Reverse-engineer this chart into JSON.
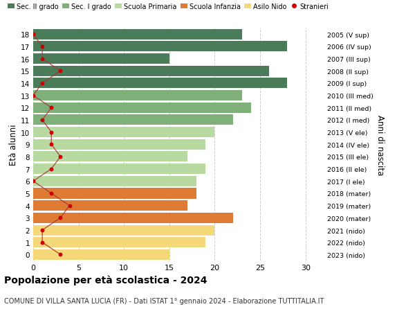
{
  "ages": [
    18,
    17,
    16,
    15,
    14,
    13,
    12,
    11,
    10,
    9,
    8,
    7,
    6,
    5,
    4,
    3,
    2,
    1,
    0
  ],
  "years_labels": [
    "2005 (V sup)",
    "2006 (IV sup)",
    "2007 (III sup)",
    "2008 (II sup)",
    "2009 (I sup)",
    "2010 (III med)",
    "2011 (II med)",
    "2012 (I med)",
    "2013 (V ele)",
    "2014 (IV ele)",
    "2015 (III ele)",
    "2016 (II ele)",
    "2017 (I ele)",
    "2018 (mater)",
    "2019 (mater)",
    "2020 (mater)",
    "2021 (nido)",
    "2022 (nido)",
    "2023 (nido)"
  ],
  "bar_values": [
    23,
    28,
    15,
    26,
    28,
    23,
    24,
    22,
    20,
    19,
    17,
    19,
    18,
    18,
    17,
    22,
    20,
    19,
    15
  ],
  "stranieri": [
    0,
    1,
    1,
    3,
    1,
    0,
    2,
    1,
    2,
    2,
    3,
    2,
    0,
    2,
    4,
    3,
    1,
    1,
    3
  ],
  "bar_colors": [
    "#4a7c59",
    "#4a7c59",
    "#4a7c59",
    "#4a7c59",
    "#4a7c59",
    "#7fb07a",
    "#7fb07a",
    "#7fb07a",
    "#b8d9a0",
    "#b8d9a0",
    "#b8d9a0",
    "#b8d9a0",
    "#b8d9a0",
    "#e07b35",
    "#e07b35",
    "#e07b35",
    "#f5d87a",
    "#f5d87a",
    "#f5d87a"
  ],
  "legend_labels": [
    "Sec. II grado",
    "Sec. I grado",
    "Scuola Primaria",
    "Scuola Infanzia",
    "Asilo Nido",
    "Stranieri"
  ],
  "legend_colors": [
    "#4a7c59",
    "#7fb07a",
    "#b8d9a0",
    "#e07b35",
    "#f5d87a",
    "#cc0000"
  ],
  "ylabel": "Età alunni",
  "ylabel_right": "Anni di nascita",
  "title": "Popolazione per età scolastica - 2024",
  "subtitle": "COMUNE DI VILLA SANTA LUCIA (FR) - Dati ISTAT 1° gennaio 2024 - Elaborazione TUTTITALIA.IT",
  "xlim": [
    0,
    32
  ],
  "background_color": "#ffffff",
  "grid_color": "#cccccc",
  "stranieri_color": "#cc0000",
  "stranieri_line_color": "#aa3333"
}
